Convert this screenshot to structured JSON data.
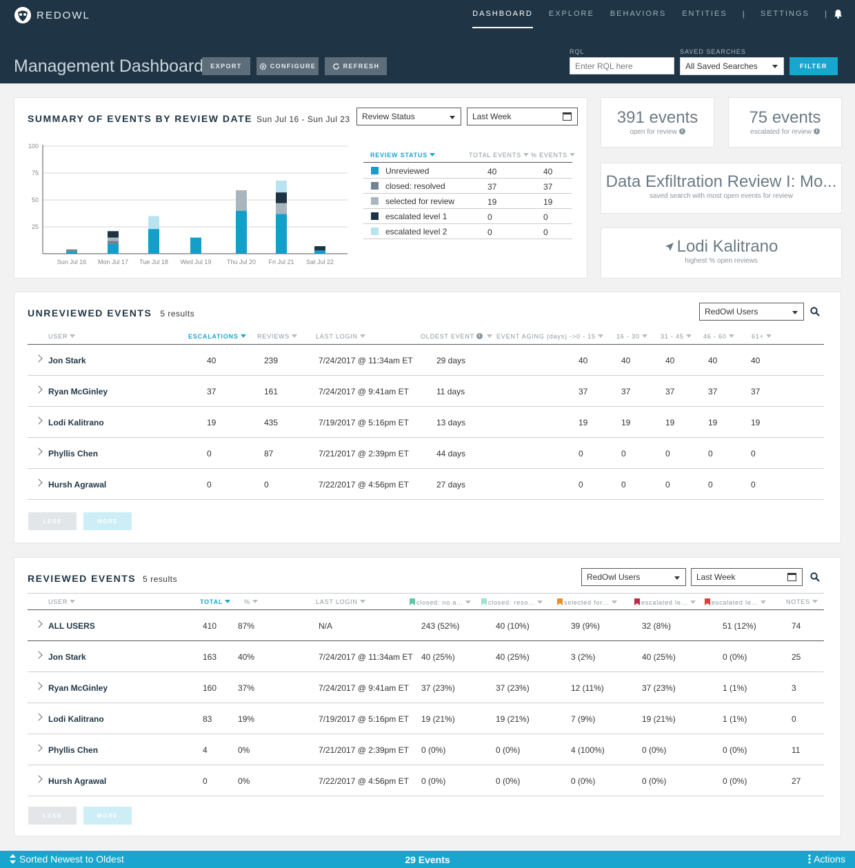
{
  "app": {
    "logo_text": "REDOWL"
  },
  "nav": {
    "items": [
      "DASHBOARD",
      "EXPLORE",
      "BEHAVIORS",
      "ENTITIES"
    ],
    "separator": "|",
    "settings": "SETTINGS"
  },
  "header": {
    "title": "Management Dashboard",
    "export": "EXPORT",
    "configure": "CONFIGURE",
    "refresh": "REFRESH",
    "rql_label": "RQL",
    "rql_placeholder": "Enter RQL here",
    "saved_label": "SAVED SEARCHES",
    "saved_value": "All Saved Searches",
    "filter": "FILTER"
  },
  "summary": {
    "title": "SUMMARY OF EVENTS BY REVIEW DATE",
    "range": "Sun Jul 16 - Sun Jul 23",
    "group_dd": "Review Status",
    "period_dd": "Last Week",
    "legend_headers": [
      "REVIEW STATUS",
      "TOTAL EVENTS",
      "% EVENTS"
    ],
    "legend": [
      {
        "label": "Unreviewed",
        "total": "40",
        "pct": "40",
        "color": "#139fc9"
      },
      {
        "label": "closed: resolved",
        "total": "37",
        "pct": "37",
        "color": "#6f8391"
      },
      {
        "label": "selected for review",
        "total": "19",
        "pct": "19",
        "color": "#a9b6be"
      },
      {
        "label": "escalated level 1",
        "total": "0",
        "pct": "0",
        "color": "#1e3445"
      },
      {
        "label": "escalated level 2",
        "total": "0",
        "pct": "0",
        "color": "#b9e4ef"
      }
    ]
  },
  "chart_data": {
    "type": "bar",
    "stacked": true,
    "categories": [
      "Sun Jul 16",
      "Mon Jul 17",
      "Tue Jul 18",
      "Wed Jul 19",
      "Thu Jul 20",
      "Fri Jul 21",
      "Sat Jul 22"
    ],
    "ylim": [
      0,
      100
    ],
    "yticks": [
      100,
      75,
      50,
      25
    ],
    "grid": true,
    "series": [
      {
        "name": "Unreviewed",
        "color": "#139fc9",
        "values": [
          2,
          9,
          23,
          15,
          40,
          37,
          3
        ]
      },
      {
        "name": "closed: resolved",
        "color": "#6f8391",
        "values": [
          2,
          3,
          0,
          0,
          0,
          0,
          0
        ]
      },
      {
        "name": "selected for review",
        "color": "#a9b6be",
        "values": [
          0,
          3,
          0,
          0,
          19,
          10,
          0
        ]
      },
      {
        "name": "escalated level 1",
        "color": "#1e3445",
        "values": [
          0,
          6,
          0,
          0,
          0,
          10,
          4
        ]
      },
      {
        "name": "escalated level 2",
        "color": "#b9e4ef",
        "values": [
          0,
          0,
          12,
          0,
          0,
          11,
          0
        ]
      }
    ]
  },
  "stats": {
    "open_num": "391 events",
    "open_lbl": "open for review",
    "esc_num": "75 events",
    "esc_lbl": "escalated for review",
    "search_name": "Data Exfiltration Review I: Mo...",
    "search_lbl": "saved search with most open events for review",
    "user_name": "Lodi Kalitrano",
    "user_lbl": "highest % open reviews"
  },
  "unreviewed": {
    "title": "UNREVIEWED EVENTS",
    "count": "5 results",
    "users_dd": "RedOwl Users",
    "headers": [
      "USER",
      "ESCALATIONS",
      "REVIEWS",
      "LAST LOGIN",
      "OLDEST EVENT",
      "EVENT AGING (days) ->",
      "0 - 15",
      "16 - 30",
      "31 - 45",
      "46 - 60",
      "61+"
    ],
    "rows": [
      {
        "name": "Jon Stark",
        "esc": "40",
        "rev": "239",
        "login": "7/24/2017 @ 11:34am ET",
        "oldest": "29 days",
        "a1": "40",
        "a2": "40",
        "a3": "40",
        "a4": "40",
        "a5": "40"
      },
      {
        "name": "Ryan McGinley",
        "esc": "37",
        "rev": "161",
        "login": "7/24/2017 @ 9:41am ET",
        "oldest": "11 days",
        "a1": "37",
        "a2": "37",
        "a3": "37",
        "a4": "37",
        "a5": "37"
      },
      {
        "name": "Lodi Kalitrano",
        "esc": "19",
        "rev": "435",
        "login": "7/19/2017 @ 5:16pm ET",
        "oldest": "13 days",
        "a1": "19",
        "a2": "19",
        "a3": "19",
        "a4": "19",
        "a5": "19"
      },
      {
        "name": "Phyllis Chen",
        "esc": "0",
        "rev": "87",
        "login": "7/21/2017 @ 2:39pm ET",
        "oldest": "44 days",
        "a1": "0",
        "a2": "0",
        "a3": "0",
        "a4": "0",
        "a5": "0"
      },
      {
        "name": "Hursh Agrawal",
        "esc": "0",
        "rev": "0",
        "login": "7/22/2017 @ 4:56pm ET",
        "oldest": "27 days",
        "a1": "0",
        "a2": "0",
        "a3": "0",
        "a4": "0",
        "a5": "0"
      }
    ],
    "less": "LESS",
    "more": "MORE"
  },
  "reviewed": {
    "title": "REVIEWED EVENTS",
    "count": "5 results",
    "users_dd": "RedOwl Users",
    "period_dd": "Last Week",
    "headers": [
      "USER",
      "TOTAL",
      "%",
      "LAST LOGIN",
      "closed: no a...",
      "closed: reso...",
      "selected for...",
      "escalated le...",
      "escalated le...",
      "NOTES"
    ],
    "flag_colors": [
      "#5cc8a8",
      "#9ee0d2",
      "#e8902a",
      "#c02848",
      "#e83838"
    ],
    "rows": [
      {
        "name": "ALL USERS",
        "total": "410",
        "pct": "87%",
        "login": "N/A",
        "c1": "243 (52%)",
        "c2": "40 (10%)",
        "c3": "39 (9%)",
        "c4": "32 (8%)",
        "c5": "51 (12%)",
        "notes": "74"
      },
      {
        "name": "Jon Stark",
        "total": "163",
        "pct": "40%",
        "login": "7/24/2017 @ 11:34am ET",
        "c1": "40 (25%)",
        "c2": "40 (25%)",
        "c3": "3 (2%)",
        "c4": "40 (25%)",
        "c5": "0 (0%)",
        "notes": "25"
      },
      {
        "name": "Ryan McGinley",
        "total": "160",
        "pct": "37%",
        "login": "7/24/2017 @ 9:41am ET",
        "c1": "37 (23%)",
        "c2": "37 (23%)",
        "c3": "12 (11%)",
        "c4": "37 (23%)",
        "c5": "1 (1%)",
        "notes": "3"
      },
      {
        "name": "Lodi Kalitrano",
        "total": "83",
        "pct": "19%",
        "login": "7/19/2017 @ 5:16pm ET",
        "c1": "19 (21%)",
        "c2": "19 (21%)",
        "c3": "7 (9%)",
        "c4": "19 (21%)",
        "c5": "1 (1%)",
        "notes": "0"
      },
      {
        "name": "Phyllis Chen",
        "total": "4",
        "pct": "0%",
        "login": "7/21/2017 @ 2:39pm ET",
        "c1": "0 (0%)",
        "c2": "0 (0%)",
        "c3": "4 (100%)",
        "c4": "0 (0%)",
        "c5": "0 (0%)",
        "notes": "11"
      },
      {
        "name": "Hursh Agrawal",
        "total": "0",
        "pct": "0%",
        "login": "7/22/2017 @ 4:56pm ET",
        "c1": "0 (0%)",
        "c2": "0 (0%)",
        "c3": "0 (0%)",
        "c4": "0 (0%)",
        "c5": "0 (0%)",
        "notes": "27"
      }
    ],
    "less": "LESS",
    "more": "MORE"
  },
  "footer": {
    "sort": "Sorted Newest to Oldest",
    "count": "29 Events",
    "actions": "Actions"
  }
}
